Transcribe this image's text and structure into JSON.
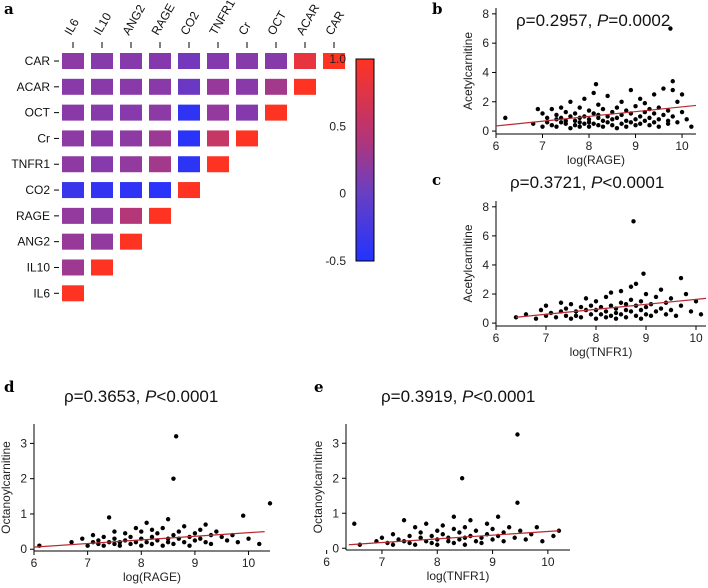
{
  "colors": {
    "low": "#3344ee",
    "mid": "#8a3aa8",
    "high": "#ff3322",
    "points": "#000000",
    "fit_line": "#b8282f",
    "colorbar_border": "#000000"
  },
  "chart_data": [
    {
      "panel": "a",
      "type": "heatmap",
      "title": "",
      "variables": [
        "IL6",
        "IL10",
        "ANG2",
        "RAGE",
        "CO2",
        "TNFR1",
        "Cr",
        "OCT",
        "ACAR",
        "CAR"
      ],
      "rows": [
        "CAR",
        "ACAR",
        "OCT",
        "Cr",
        "TNFR1",
        "CO2",
        "RAGE",
        "ANG2",
        "IL10",
        "IL6"
      ],
      "lower_triangle_values": {
        "CAR": [
          0.32,
          0.28,
          0.27,
          0.25,
          0.12,
          0.25,
          0.28,
          0.28,
          0.85,
          1.0
        ],
        "ACAR": [
          0.3,
          0.3,
          0.3,
          0.3,
          0.05,
          0.37,
          0.3,
          0.45,
          1.0
        ],
        "OCT": [
          0.3,
          0.28,
          0.27,
          0.31,
          -0.4,
          0.36,
          0.25,
          1.0
        ],
        "Cr": [
          0.32,
          0.3,
          0.32,
          0.4,
          -0.45,
          0.65,
          1.0
        ],
        "TNFR1": [
          0.33,
          0.27,
          0.35,
          0.45,
          -0.42,
          1.0
        ],
        "CO2": [
          -0.32,
          -0.38,
          -0.4,
          -0.45,
          1.0
        ],
        "RAGE": [
          0.36,
          0.32,
          0.55,
          1.0
        ],
        "ANG2": [
          0.38,
          0.35,
          1.0
        ],
        "IL10": [
          0.42,
          1.0
        ],
        "IL6": [
          1.0
        ]
      },
      "colorbar": {
        "min": -0.5,
        "max": 1.0,
        "ticks": [
          "1.0",
          "0.5",
          "0",
          "-0.5"
        ],
        "tick_values": [
          1.0,
          0.5,
          0,
          -0.5
        ]
      }
    },
    {
      "panel": "b",
      "type": "scatter",
      "annotation": {
        "rho": "ρ=0.2957, ",
        "p_label": "P",
        "p_text": "=0.0002"
      },
      "xlabel": "log(RAGE)",
      "ylabel": "Acetylcarnitine",
      "xlim": [
        6,
        10.3
      ],
      "ylim": [
        -0.2,
        8.4
      ],
      "xticks": [
        6,
        7,
        8,
        9,
        10
      ],
      "yticks": [
        0,
        2,
        4,
        6,
        8
      ],
      "fit": {
        "x": [
          6.0,
          10.3
        ],
        "y": [
          0.35,
          1.75
        ]
      },
      "x": [
        6.2,
        6.8,
        6.9,
        7.0,
        7.0,
        7.1,
        7.1,
        7.2,
        7.2,
        7.3,
        7.3,
        7.3,
        7.4,
        7.4,
        7.4,
        7.5,
        7.5,
        7.5,
        7.6,
        7.6,
        7.6,
        7.7,
        7.7,
        7.7,
        7.8,
        7.8,
        7.8,
        7.8,
        7.9,
        7.9,
        7.9,
        8.0,
        8.0,
        8.0,
        8.0,
        8.1,
        8.1,
        8.1,
        8.2,
        8.2,
        8.2,
        8.2,
        8.3,
        8.3,
        8.3,
        8.4,
        8.4,
        8.4,
        8.5,
        8.5,
        8.5,
        8.6,
        8.6,
        8.6,
        8.7,
        8.7,
        8.7,
        8.8,
        8.8,
        8.8,
        8.9,
        8.9,
        8.9,
        9.0,
        9.0,
        9.0,
        9.1,
        9.1,
        9.1,
        9.2,
        9.2,
        9.2,
        9.3,
        9.3,
        9.3,
        9.4,
        9.4,
        9.4,
        9.5,
        9.5,
        9.5,
        9.6,
        9.6,
        9.7,
        9.7,
        9.7,
        9.8,
        9.8,
        9.9,
        9.9,
        10.0,
        10.0,
        10.1,
        10.2,
        8.15,
        9.75,
        9.8
      ],
      "y": [
        0.9,
        0.5,
        1.5,
        0.3,
        1.2,
        0.6,
        0.9,
        1.5,
        0.4,
        0.8,
        1.1,
        0.3,
        0.6,
        1.6,
        0.9,
        0.5,
        1.3,
        0.7,
        0.2,
        1.0,
        2.0,
        0.7,
        1.2,
        0.4,
        0.9,
        1.6,
        0.3,
        0.6,
        1.0,
        0.5,
        2.2,
        0.8,
        1.4,
        0.3,
        0.6,
        1.2,
        2.6,
        0.5,
        0.9,
        1.8,
        0.4,
        1.1,
        0.7,
        1.5,
        0.3,
        1.0,
        2.4,
        0.6,
        0.8,
        1.3,
        0.4,
        1.6,
        0.9,
        0.2,
        1.1,
        2.0,
        0.5,
        0.7,
        1.4,
        0.3,
        1.2,
        2.8,
        0.6,
        0.8,
        1.7,
        0.4,
        1.0,
        2.2,
        0.5,
        1.3,
        0.7,
        1.9,
        0.9,
        1.5,
        0.4,
        1.2,
        2.5,
        0.6,
        0.8,
        1.6,
        0.3,
        1.1,
        2.9,
        0.7,
        1.4,
        0.5,
        1.0,
        3.4,
        2.0,
        0.6,
        1.3,
        2.5,
        0.8,
        0.3,
        3.2,
        7.0,
        2.8
      ]
    },
    {
      "panel": "c",
      "type": "scatter",
      "annotation": {
        "rho": "ρ=0.3721, ",
        "p_label": "P",
        "p_text": "<0.0001"
      },
      "xlabel": "log(TNFR1)",
      "ylabel": "Acetylcarnitine",
      "xlim": [
        6,
        10.2
      ],
      "ylim": [
        -0.2,
        8.4
      ],
      "xticks": [
        6,
        7,
        8,
        9,
        10
      ],
      "yticks": [
        0,
        2,
        4,
        6,
        8
      ],
      "fit": {
        "x": [
          6.4,
          10.2
        ],
        "y": [
          0.4,
          1.7
        ]
      },
      "x": [
        6.4,
        6.6,
        6.8,
        6.9,
        7.0,
        7.0,
        7.1,
        7.2,
        7.3,
        7.3,
        7.4,
        7.4,
        7.5,
        7.5,
        7.6,
        7.6,
        7.7,
        7.7,
        7.8,
        7.8,
        7.9,
        7.9,
        8.0,
        8.0,
        8.0,
        8.1,
        8.1,
        8.2,
        8.2,
        8.2,
        8.3,
        8.3,
        8.3,
        8.4,
        8.4,
        8.4,
        8.5,
        8.5,
        8.5,
        8.6,
        8.6,
        8.6,
        8.7,
        8.7,
        8.7,
        8.8,
        8.8,
        8.8,
        8.9,
        8.9,
        8.9,
        9.0,
        9.0,
        9.0,
        9.1,
        9.1,
        9.2,
        9.2,
        9.3,
        9.3,
        9.4,
        9.4,
        9.5,
        9.5,
        9.6,
        9.7,
        9.8,
        9.9,
        10.0,
        10.1,
        8.75,
        8.95,
        9.7
      ],
      "y": [
        0.4,
        0.6,
        0.3,
        0.9,
        0.5,
        1.2,
        0.7,
        0.4,
        0.8,
        1.4,
        0.5,
        1.0,
        0.3,
        1.3,
        0.8,
        0.5,
        1.1,
        0.4,
        0.9,
        1.7,
        0.6,
        1.2,
        0.3,
        0.9,
        1.5,
        0.6,
        1.1,
        0.4,
        0.8,
        1.8,
        0.5,
        1.2,
        2.1,
        0.7,
        1.0,
        0.3,
        1.4,
        0.6,
        2.2,
        0.9,
        1.3,
        0.4,
        1.6,
        0.8,
        2.5,
        0.5,
        1.2,
        2.7,
        0.9,
        1.5,
        0.3,
        1.1,
        2.0,
        0.6,
        1.3,
        0.5,
        1.8,
        0.8,
        1.0,
        2.3,
        0.6,
        1.4,
        0.9,
        1.7,
        0.5,
        1.2,
        2.0,
        0.8,
        1.5,
        0.6,
        7.0,
        3.4,
        3.1
      ]
    },
    {
      "panel": "d",
      "type": "scatter",
      "annotation": {
        "rho": "ρ=0.3653, ",
        "p_label": "P",
        "p_text": "<0.0001"
      },
      "xlabel": "log(RAGE)",
      "ylabel": "Octanoylcarnitine",
      "xlim": [
        6,
        10.4
      ],
      "ylim": [
        -0.05,
        3.55
      ],
      "xticks": [
        6,
        7,
        8,
        9,
        10
      ],
      "yticks": [
        0,
        1,
        2,
        3
      ],
      "fit": {
        "x": [
          6.0,
          10.3
        ],
        "y": [
          0.06,
          0.5
        ]
      },
      "x": [
        6.1,
        6.7,
        6.9,
        7.0,
        7.1,
        7.1,
        7.2,
        7.2,
        7.3,
        7.3,
        7.4,
        7.4,
        7.5,
        7.5,
        7.5,
        7.6,
        7.6,
        7.7,
        7.7,
        7.8,
        7.8,
        7.9,
        7.9,
        8.0,
        8.0,
        8.0,
        8.1,
        8.1,
        8.2,
        8.2,
        8.2,
        8.3,
        8.3,
        8.4,
        8.4,
        8.5,
        8.5,
        8.5,
        8.6,
        8.6,
        8.7,
        8.7,
        8.8,
        8.8,
        8.9,
        8.9,
        9.0,
        9.0,
        9.1,
        9.1,
        9.2,
        9.2,
        9.3,
        9.3,
        9.4,
        9.5,
        9.6,
        9.7,
        9.8,
        9.9,
        10.0,
        10.2,
        10.4,
        8.65,
        8.6
      ],
      "y": [
        0.1,
        0.2,
        0.3,
        0.1,
        0.2,
        0.4,
        0.15,
        0.25,
        0.1,
        0.35,
        0.2,
        0.9,
        0.15,
        0.3,
        0.5,
        0.2,
        0.1,
        0.45,
        0.25,
        0.15,
        0.35,
        0.2,
        0.6,
        0.1,
        0.3,
        0.5,
        0.2,
        0.75,
        0.15,
        0.35,
        0.55,
        0.25,
        0.45,
        0.1,
        0.6,
        0.3,
        0.2,
        0.85,
        0.4,
        0.15,
        0.3,
        0.5,
        0.2,
        0.65,
        0.35,
        0.1,
        0.45,
        0.25,
        0.55,
        0.3,
        0.2,
        0.7,
        0.4,
        0.15,
        0.5,
        0.35,
        0.25,
        0.4,
        0.2,
        0.95,
        0.3,
        0.15,
        1.3,
        3.2,
        2.0
      ]
    },
    {
      "panel": "e",
      "type": "scatter",
      "annotation": {
        "rho": "ρ=0.3919, ",
        "p_label": "P",
        "p_text": "<0.0001"
      },
      "xlabel": "log(TNFR1)",
      "ylabel": "Octanoylcarnitine",
      "xlim": [
        6.35,
        10.4
      ],
      "ylim": [
        -0.05,
        3.55
      ],
      "xticks": [
        6,
        7,
        8,
        9,
        10
      ],
      "yticks": [
        0,
        1,
        2,
        3
      ],
      "fit": {
        "x": [
          6.4,
          10.2
        ],
        "y": [
          0.1,
          0.5
        ]
      },
      "x": [
        6.5,
        6.6,
        6.9,
        7.0,
        7.1,
        7.2,
        7.2,
        7.3,
        7.4,
        7.4,
        7.5,
        7.5,
        7.6,
        7.6,
        7.7,
        7.7,
        7.8,
        7.8,
        7.9,
        7.9,
        8.0,
        8.0,
        8.0,
        8.1,
        8.1,
        8.2,
        8.2,
        8.3,
        8.3,
        8.3,
        8.4,
        8.4,
        8.5,
        8.5,
        8.5,
        8.6,
        8.6,
        8.7,
        8.7,
        8.8,
        8.8,
        8.9,
        8.9,
        9.0,
        9.0,
        9.1,
        9.1,
        9.2,
        9.2,
        9.3,
        9.4,
        9.5,
        9.6,
        9.7,
        9.8,
        9.9,
        10.1,
        10.2,
        8.45,
        9.45,
        9.45
      ],
      "y": [
        0.7,
        0.1,
        0.2,
        0.3,
        0.15,
        0.4,
        0.1,
        0.25,
        0.8,
        0.2,
        0.35,
        0.15,
        0.6,
        0.1,
        0.3,
        0.45,
        0.2,
        0.7,
        0.15,
        0.35,
        0.25,
        0.5,
        0.1,
        0.4,
        0.65,
        0.2,
        0.3,
        0.15,
        0.55,
        0.9,
        0.25,
        0.45,
        0.3,
        0.6,
        0.1,
        0.35,
        0.8,
        0.2,
        0.5,
        0.3,
        0.15,
        0.4,
        0.7,
        0.25,
        0.55,
        0.35,
        0.9,
        0.2,
        0.45,
        0.6,
        0.3,
        0.5,
        0.25,
        0.4,
        0.6,
        0.2,
        0.35,
        0.5,
        2.0,
        3.25,
        1.3
      ]
    }
  ]
}
